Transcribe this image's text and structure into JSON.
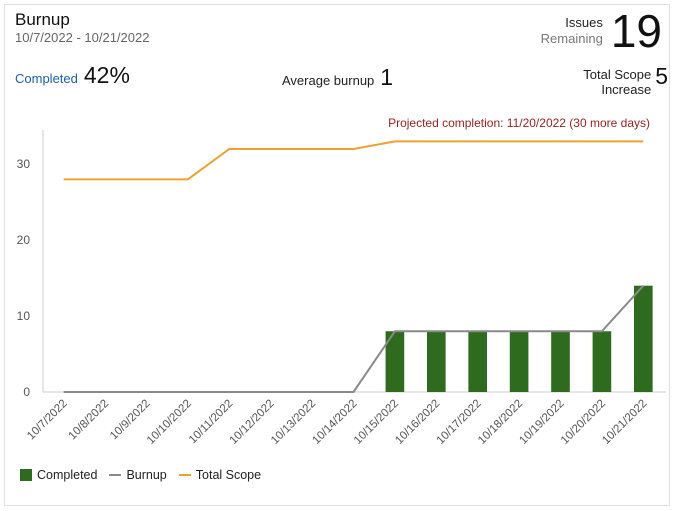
{
  "header": {
    "title": "Burnup",
    "date_range": "10/7/2022 - 10/21/2022",
    "issues_label_1": "Issues",
    "issues_label_2": "Remaining",
    "issues_value": "19"
  },
  "stats": {
    "completed_label": "Completed",
    "completed_value": "42%",
    "avg_label": "Average burnup",
    "avg_value": "1",
    "scope_label_1": "Total Scope",
    "scope_label_2": "Increase",
    "scope_value": "5"
  },
  "projection": "Projected completion: 11/20/2022 (30 more days)",
  "colors": {
    "completed": "#2e6b1f",
    "burnup": "#8a8a8a",
    "total_scope": "#f0a030",
    "projection": "#9c2222"
  },
  "legend": {
    "completed": "Completed",
    "burnup": "Burnup",
    "total_scope": "Total Scope"
  },
  "chart_data": {
    "type": "bar",
    "categories": [
      "10/7/2022",
      "10/8/2022",
      "10/9/2022",
      "10/10/2022",
      "10/11/2022",
      "10/12/2022",
      "10/13/2022",
      "10/14/2022",
      "10/15/2022",
      "10/16/2022",
      "10/17/2022",
      "10/18/2022",
      "10/19/2022",
      "10/20/2022",
      "10/21/2022"
    ],
    "series": [
      {
        "name": "Completed",
        "type": "bar",
        "values": [
          0,
          0,
          0,
          0,
          0,
          0,
          0,
          0,
          8,
          8,
          8,
          8,
          8,
          8,
          14
        ]
      },
      {
        "name": "Burnup",
        "type": "line",
        "values": [
          0,
          0,
          0,
          0,
          0,
          0,
          0,
          0,
          8,
          8,
          8,
          8,
          8,
          8,
          14
        ]
      },
      {
        "name": "Total Scope",
        "type": "line",
        "values": [
          28,
          28,
          28,
          28,
          32,
          32,
          32,
          32,
          33,
          33,
          33,
          33,
          33,
          33,
          33
        ]
      }
    ],
    "yticks": [
      0,
      10,
      20,
      30
    ],
    "ylim": [
      0,
      34.5
    ],
    "legend_position": "bottom-left",
    "grid": false
  }
}
